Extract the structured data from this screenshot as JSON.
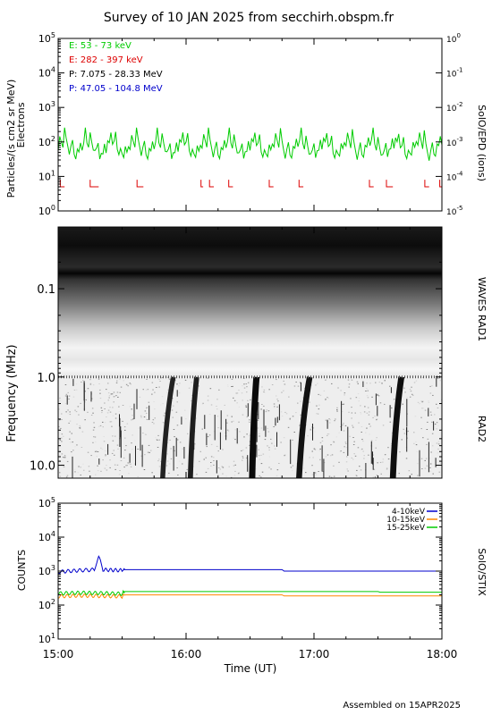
{
  "page": {
    "title": "Survey of 10 JAN 2025 from secchirh.obspm.fr",
    "footer": "Assembled on 15APR2025"
  },
  "chart_data": [
    {
      "type": "line",
      "panel": "epd",
      "ylabel": "Particles/(s cm2 sr MeV)",
      "ylabel2": "Electrons",
      "right_label": "SolO/EPD (ions)",
      "yscale": "log",
      "ylim": [
        1,
        100000
      ],
      "y_ticks": [
        "10^0",
        "10^1",
        "10^2",
        "10^3",
        "10^4",
        "10^5"
      ],
      "right_ylim": [
        1e-05,
        1
      ],
      "right_ticks": [
        "10^-5",
        "10^-4",
        "10^-3",
        "10^-2",
        "10^-1",
        "10^0"
      ],
      "xlim": [
        "15:00",
        "18:00"
      ],
      "legend_position": "top-left",
      "series": [
        {
          "name": "E: 53 - 73 keV",
          "color": "#00cc00",
          "mean": 60,
          "values": [
            55,
            120,
            70,
            45,
            180,
            90,
            60,
            40,
            85,
            150,
            65,
            50,
            95,
            70,
            110,
            55,
            75,
            200,
            60,
            45,
            130,
            80,
            55,
            65,
            90,
            140,
            50,
            70,
            60,
            100,
            45,
            85,
            65,
            120,
            55,
            75,
            160,
            60,
            50,
            90,
            70,
            55,
            110,
            65,
            80
          ]
        },
        {
          "name": "E: 282 - 397 keV",
          "color": "#dd0000",
          "mean": 5,
          "segments": [
            [
              "15:01",
              "15:03"
            ],
            [
              "15:15",
              "15:19"
            ],
            [
              "15:37",
              "15:40"
            ],
            [
              "16:07",
              "16:08"
            ],
            [
              "16:11",
              "16:13"
            ],
            [
              "16:20",
              "16:22"
            ],
            [
              "16:39",
              "16:41"
            ],
            [
              "16:53",
              "16:55"
            ],
            [
              "17:26",
              "17:28"
            ],
            [
              "17:34",
              "17:37"
            ],
            [
              "17:52",
              "17:54"
            ],
            [
              "17:59",
              "18:00"
            ]
          ]
        },
        {
          "name": "P: 7.075 - 28.33 MeV",
          "color": "#000000"
        },
        {
          "name": "P: 47.05 - 104.8 MeV",
          "color": "#0000cc"
        }
      ]
    },
    {
      "type": "heatmap",
      "panel": "waves",
      "ylabel": "Frequency (MHz)",
      "right_label_rad1": "WAVES RAD1",
      "right_label_rad2": "RAD2",
      "yscale": "log",
      "y_inverted": true,
      "ylim": [
        0.02,
        14
      ],
      "y_ticks": [
        "0.1",
        "1.0",
        "10.0"
      ],
      "rad1_rad2_boundary_mhz": 1.0,
      "bursts": [
        {
          "start": "15:49",
          "end": "15:54",
          "strength": 0.7
        },
        {
          "start": "16:02",
          "end": "16:05",
          "strength": 0.75
        },
        {
          "start": "16:31",
          "end": "16:33",
          "strength": 1.0
        },
        {
          "start": "16:53",
          "end": "16:58",
          "strength": 0.9
        },
        {
          "start": "17:37",
          "end": "17:41",
          "strength": 0.95
        }
      ]
    },
    {
      "type": "line",
      "panel": "stix",
      "ylabel": "COUNTS",
      "right_label": "SolO/STIX",
      "yscale": "log",
      "ylim": [
        10,
        100000
      ],
      "y_ticks": [
        "10^1",
        "10^2",
        "10^3",
        "10^4",
        "10^5"
      ],
      "x_ticks": [
        "15:00",
        "16:00",
        "17:00",
        "18:00"
      ],
      "xlabel": "Time (UT)",
      "legend_position": "top-right",
      "series": [
        {
          "name": "4-10keV",
          "color": "#0000cc",
          "points": [
            [
              "15:00",
              950
            ],
            [
              "15:10",
              1050
            ],
            [
              "15:17",
              1100
            ],
            [
              "15:19",
              2500
            ],
            [
              "15:21",
              1100
            ],
            [
              "15:30",
              1050
            ],
            [
              "15:31",
              1100
            ],
            [
              "16:45",
              1100
            ],
            [
              "16:46",
              1000
            ],
            [
              "18:00",
              1000
            ]
          ]
        },
        {
          "name": "10-15keV",
          "color": "#ff8800",
          "points": [
            [
              "15:00",
              180
            ],
            [
              "15:10",
              190
            ],
            [
              "15:20",
              185
            ],
            [
              "15:30",
              180
            ],
            [
              "15:31",
              200
            ],
            [
              "16:45",
              200
            ],
            [
              "16:46",
              185
            ],
            [
              "18:00",
              185
            ]
          ]
        },
        {
          "name": "15-25keV",
          "color": "#00cc00",
          "points": [
            [
              "15:00",
              220
            ],
            [
              "15:10",
              230
            ],
            [
              "15:20",
              225
            ],
            [
              "15:30",
              215
            ],
            [
              "15:31",
              250
            ],
            [
              "17:30",
              250
            ],
            [
              "17:31",
              240
            ],
            [
              "18:00",
              240
            ]
          ]
        }
      ]
    }
  ]
}
